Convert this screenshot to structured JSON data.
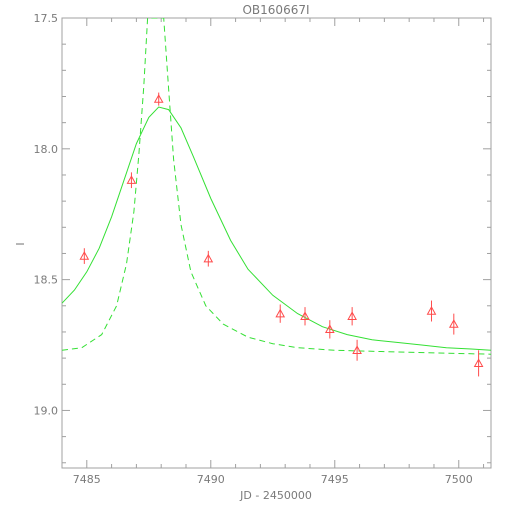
{
  "chart_data": {
    "type": "scatter",
    "title": "OB160667I",
    "xlabel": "JD - 2450000",
    "ylabel": "I",
    "xlim": [
      7484.0,
      7501.3
    ],
    "ylim": [
      19.22,
      17.5
    ],
    "y_inverted": true,
    "x_ticks": [
      7485,
      7490,
      7495,
      7500
    ],
    "y_ticks": [
      17.5,
      18.0,
      18.5,
      19.0
    ],
    "x_tick_labels": [
      "7485",
      "7490",
      "7495",
      "7500"
    ],
    "y_tick_labels": [
      "17.5",
      "18.0",
      "18.5",
      "19.0"
    ],
    "grid": false,
    "colors": {
      "axes": "#a0a0a0",
      "points": "#ff4b4b",
      "models": "#34e034",
      "text": "#7a7a7a"
    },
    "points": {
      "marker": "open-triangle",
      "x": [
        7484.9,
        7486.8,
        7487.9,
        7489.9,
        7492.8,
        7493.8,
        7494.8,
        7495.7,
        7495.9,
        7498.9,
        7499.8,
        7500.8
      ],
      "y": [
        18.41,
        18.12,
        17.81,
        18.42,
        18.63,
        18.64,
        18.69,
        18.64,
        18.77,
        18.62,
        18.67,
        18.82
      ],
      "err": [
        0.03,
        0.03,
        0.025,
        0.03,
        0.035,
        0.035,
        0.035,
        0.035,
        0.04,
        0.04,
        0.04,
        0.05
      ]
    },
    "series": [
      {
        "style": "solid",
        "x": [
          7484.0,
          7484.5,
          7485.0,
          7485.5,
          7486.0,
          7486.5,
          7487.0,
          7487.5,
          7487.9,
          7488.3,
          7488.8,
          7489.3,
          7490.0,
          7490.8,
          7491.5,
          7492.5,
          7493.5,
          7494.5,
          7495.5,
          7496.5,
          7497.5,
          7498.5,
          7499.5,
          7500.5,
          7501.3
        ],
        "y": [
          18.59,
          18.54,
          18.47,
          18.38,
          18.26,
          18.12,
          17.98,
          17.88,
          17.84,
          17.85,
          17.92,
          18.03,
          18.19,
          18.35,
          18.46,
          18.56,
          18.63,
          18.68,
          18.71,
          18.73,
          18.74,
          18.75,
          18.76,
          18.765,
          18.77
        ]
      },
      {
        "style": "dashed",
        "x": [
          7484.0,
          7484.8,
          7485.6,
          7486.2,
          7486.6,
          7486.9,
          7487.1,
          7487.3,
          7487.45,
          7487.55,
          7487.75,
          7487.95,
          7488.1,
          7488.3,
          7488.5,
          7488.8,
          7489.2,
          7489.8,
          7490.5,
          7491.5,
          7492.5,
          7493.5,
          7495.0,
          7497.0,
          7499.0,
          7501.3
        ],
        "y": [
          18.77,
          18.76,
          18.71,
          18.6,
          18.44,
          18.24,
          18.02,
          17.76,
          17.5,
          17.5,
          17.5,
          17.5,
          17.5,
          17.77,
          18.04,
          18.29,
          18.47,
          18.6,
          18.67,
          18.72,
          18.745,
          18.76,
          18.77,
          18.775,
          18.78,
          18.785
        ]
      }
    ]
  }
}
